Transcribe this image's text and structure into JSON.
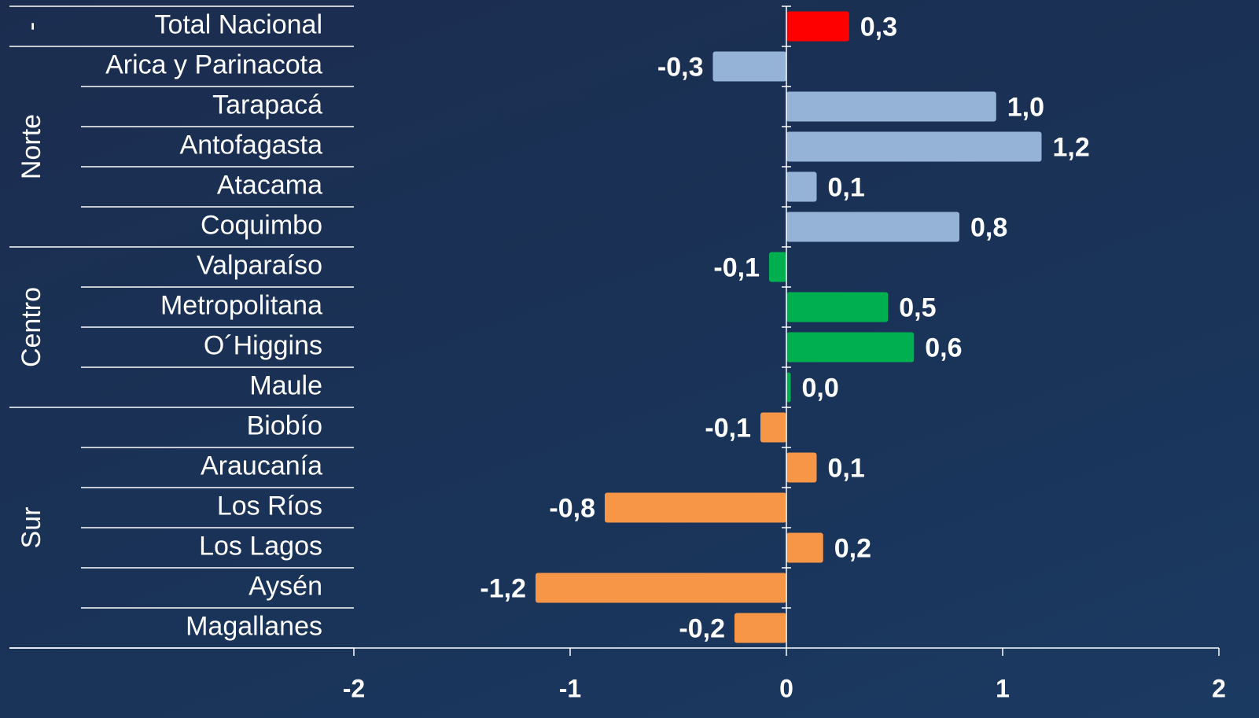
{
  "chart_data": {
    "type": "bar",
    "orientation": "horizontal",
    "categories": [
      "Total Nacional",
      "Arica y Parinacota",
      "Tarapacá",
      "Antofagasta",
      "Atacama",
      "Coquimbo",
      "Valparaíso",
      "Metropolitana",
      "O´Higgins",
      "Maule",
      "Biobío",
      "Araucanía",
      "Los Ríos",
      "Los Lagos",
      "Aysén",
      "Magallanes"
    ],
    "values": [
      0.29,
      -0.34,
      0.97,
      1.18,
      0.14,
      0.8,
      -0.08,
      0.47,
      0.59,
      0.02,
      -0.12,
      0.14,
      -0.84,
      0.17,
      -1.16,
      -0.24
    ],
    "value_labels": [
      "0,3",
      "-0,3",
      "1,0",
      "1,2",
      "0,1",
      "0,8",
      "-0,1",
      "0,5",
      "0,6",
      "0,0",
      "-0,1",
      "0,1",
      "-0,8",
      "0,2",
      "-1,2",
      "-0,2"
    ],
    "groups": [
      {
        "name": "-",
        "size": 1,
        "color": "#ff0000"
      },
      {
        "name": "Norte",
        "size": 5,
        "color": "#95b3d7"
      },
      {
        "name": "Centro",
        "size": 4,
        "color": "#00b050"
      },
      {
        "name": "Sur",
        "size": 6,
        "color": "#f79646"
      }
    ],
    "xlim": [
      -2,
      2
    ],
    "xticks": [
      -2,
      -1,
      0,
      1,
      2
    ]
  }
}
